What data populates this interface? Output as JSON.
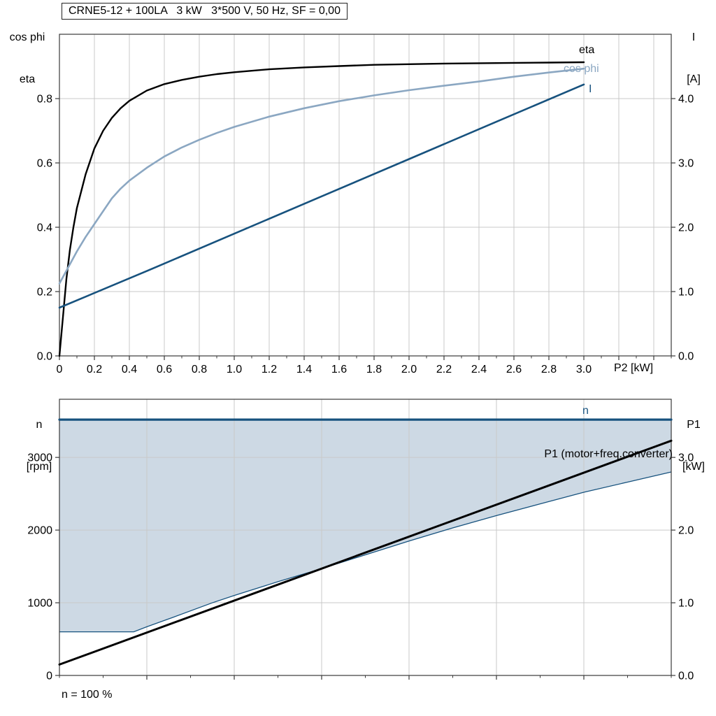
{
  "page": {
    "background": "#ffffff"
  },
  "top_chart": {
    "title": "CRNE5-12 + 100LA   3 kW   3*500 V, 50 Hz, SF = 0,00",
    "y_left_label_line1": "cos phi",
    "y_left_label_line2": "eta",
    "y_right_label_line1": "I",
    "y_right_label_line2": "[A]",
    "x_label": "P2 [kW]",
    "curve_labels": {
      "eta": "eta",
      "cos_phi": "cos phi",
      "current": "I"
    }
  },
  "bottom_chart": {
    "y_left_label_line1": "n",
    "y_left_label_line2": "[rpm]",
    "y_right_label_line1": "P1",
    "y_right_label_line2": "[kW]",
    "curve_labels": {
      "n": "n",
      "p1": "P1 (motor+freq.converter)"
    },
    "footnote": "n = 100 %"
  },
  "colors": {
    "eta": "#000000",
    "cos_phi": "#8BA7C2",
    "current": "#17527E",
    "speed": "#17527E",
    "p1": "#000000",
    "area_fill": "#CDD9E4",
    "grid": "#c9c9c9",
    "frame": "#3a3a3a"
  },
  "chart_data": [
    {
      "type": "line",
      "title": "CRNE5-12 + 100LA   3 kW   3*500 V, 50 Hz, SF = 0,00",
      "xlabel": "P2 [kW]",
      "x_range": [
        0,
        3.5
      ],
      "x_ticks": [
        0,
        0.2,
        0.4,
        0.6,
        0.8,
        1.0,
        1.2,
        1.4,
        1.6,
        1.8,
        2.0,
        2.2,
        2.4,
        2.6,
        2.8,
        3.0,
        3.2,
        3.4
      ],
      "x_tick_labels": [
        "0",
        "0.2",
        "0.4",
        "0.6",
        "0.8",
        "1.0",
        "1.2",
        "1.4",
        "1.6",
        "1.8",
        "2.0",
        "2.2",
        "2.4",
        "2.6",
        "2.8",
        "3.0",
        "",
        ""
      ],
      "x_minor_step": 0.1,
      "grid_color": "#c9c9c9",
      "left_axis": {
        "label": "cos phi / eta",
        "range": [
          0,
          1.0
        ],
        "ticks": [
          0,
          0.2,
          0.4,
          0.6,
          0.8
        ],
        "tick_labels": [
          "0.0",
          "0.2",
          "0.4",
          "0.6",
          "0.8"
        ]
      },
      "right_axis": {
        "label": "I [A]",
        "range": [
          0,
          5.0
        ],
        "ticks": [
          0,
          1,
          2,
          3,
          4
        ],
        "tick_labels": [
          "0.0",
          "1.0",
          "2.0",
          "3.0",
          "4.0"
        ]
      },
      "series": [
        {
          "name": "eta",
          "axis": "left",
          "color": "#000000",
          "width": 2.4,
          "points": [
            [
              0,
              0
            ],
            [
              0.02,
              0.12
            ],
            [
              0.04,
              0.24
            ],
            [
              0.06,
              0.33
            ],
            [
              0.08,
              0.4
            ],
            [
              0.1,
              0.46
            ],
            [
              0.15,
              0.565
            ],
            [
              0.2,
              0.645
            ],
            [
              0.25,
              0.7
            ],
            [
              0.3,
              0.74
            ],
            [
              0.35,
              0.77
            ],
            [
              0.4,
              0.793
            ],
            [
              0.5,
              0.825
            ],
            [
              0.6,
              0.845
            ],
            [
              0.7,
              0.858
            ],
            [
              0.8,
              0.868
            ],
            [
              0.9,
              0.876
            ],
            [
              1.0,
              0.882
            ],
            [
              1.2,
              0.891
            ],
            [
              1.4,
              0.897
            ],
            [
              1.6,
              0.901
            ],
            [
              1.8,
              0.905
            ],
            [
              2.0,
              0.907
            ],
            [
              2.2,
              0.909
            ],
            [
              2.4,
              0.91
            ],
            [
              2.6,
              0.911
            ],
            [
              2.8,
              0.912
            ],
            [
              3.0,
              0.913
            ]
          ]
        },
        {
          "name": "cos phi",
          "axis": "left",
          "color": "#8BA7C2",
          "width": 2.6,
          "points": [
            [
              0,
              0.225
            ],
            [
              0.05,
              0.275
            ],
            [
              0.1,
              0.325
            ],
            [
              0.15,
              0.37
            ],
            [
              0.2,
              0.41
            ],
            [
              0.25,
              0.45
            ],
            [
              0.3,
              0.49
            ],
            [
              0.35,
              0.52
            ],
            [
              0.4,
              0.545
            ],
            [
              0.5,
              0.585
            ],
            [
              0.6,
              0.62
            ],
            [
              0.7,
              0.648
            ],
            [
              0.8,
              0.672
            ],
            [
              0.9,
              0.693
            ],
            [
              1.0,
              0.712
            ],
            [
              1.2,
              0.744
            ],
            [
              1.4,
              0.77
            ],
            [
              1.6,
              0.792
            ],
            [
              1.8,
              0.81
            ],
            [
              2.0,
              0.826
            ],
            [
              2.2,
              0.84
            ],
            [
              2.4,
              0.853
            ],
            [
              2.6,
              0.868
            ],
            [
              2.8,
              0.881
            ],
            [
              3.0,
              0.893
            ]
          ]
        },
        {
          "name": "I",
          "axis": "right",
          "color": "#17527E",
          "width": 2.6,
          "points": [
            [
              0,
              0.75
            ],
            [
              0.5,
              1.32
            ],
            [
              1.0,
              1.9
            ],
            [
              1.5,
              2.48
            ],
            [
              2.0,
              3.06
            ],
            [
              2.5,
              3.64
            ],
            [
              3.0,
              4.22
            ]
          ]
        }
      ]
    },
    {
      "type": "line",
      "xlabel": "",
      "x_range": [
        0,
        7
      ],
      "x_ticks": [
        1,
        2,
        3,
        4,
        5,
        6
      ],
      "x_tick_labels": [
        "",
        "",
        "",
        "",
        "",
        ""
      ],
      "x_minor_step": 0.5,
      "grid_color": "#c9c9c9",
      "left_axis": {
        "label": "n [rpm]",
        "range": [
          0,
          3800
        ],
        "ticks": [
          0,
          1000,
          2000,
          3000
        ],
        "tick_labels": [
          "0",
          "1000",
          "2000",
          "3000"
        ]
      },
      "right_axis": {
        "label": "P1 [kW]",
        "range": [
          0,
          3.8
        ],
        "ticks": [
          0,
          1,
          2,
          3
        ],
        "tick_labels": [
          "0.0",
          "1.0",
          "2.0",
          "3.0"
        ]
      },
      "area": {
        "name": "speed-operating-range",
        "color": "#CDD9E4",
        "border_color": "#17527E",
        "upper_rpm": 3520,
        "lower_points": [
          [
            0,
            600
          ],
          [
            0.85,
            600
          ],
          [
            1.0,
            670
          ],
          [
            1.3,
            800
          ],
          [
            1.75,
            1000
          ],
          [
            2.0,
            1100
          ],
          [
            2.5,
            1290
          ],
          [
            3.0,
            1470
          ],
          [
            3.5,
            1660
          ],
          [
            4.0,
            1850
          ],
          [
            4.5,
            2030
          ],
          [
            5.0,
            2200
          ],
          [
            5.5,
            2360
          ],
          [
            6.0,
            2520
          ],
          [
            6.5,
            2660
          ],
          [
            7.0,
            2800
          ]
        ]
      },
      "series": [
        {
          "name": "n",
          "axis": "left",
          "color": "#17527E",
          "width": 3.2,
          "points": [
            [
              0,
              3520
            ],
            [
              7,
              3520
            ]
          ]
        },
        {
          "name": "P1 (motor+freq.converter)",
          "axis": "right",
          "color": "#000000",
          "width": 3,
          "points": [
            [
              0,
              0.15
            ],
            [
              7,
              3.23
            ]
          ]
        }
      ]
    }
  ]
}
